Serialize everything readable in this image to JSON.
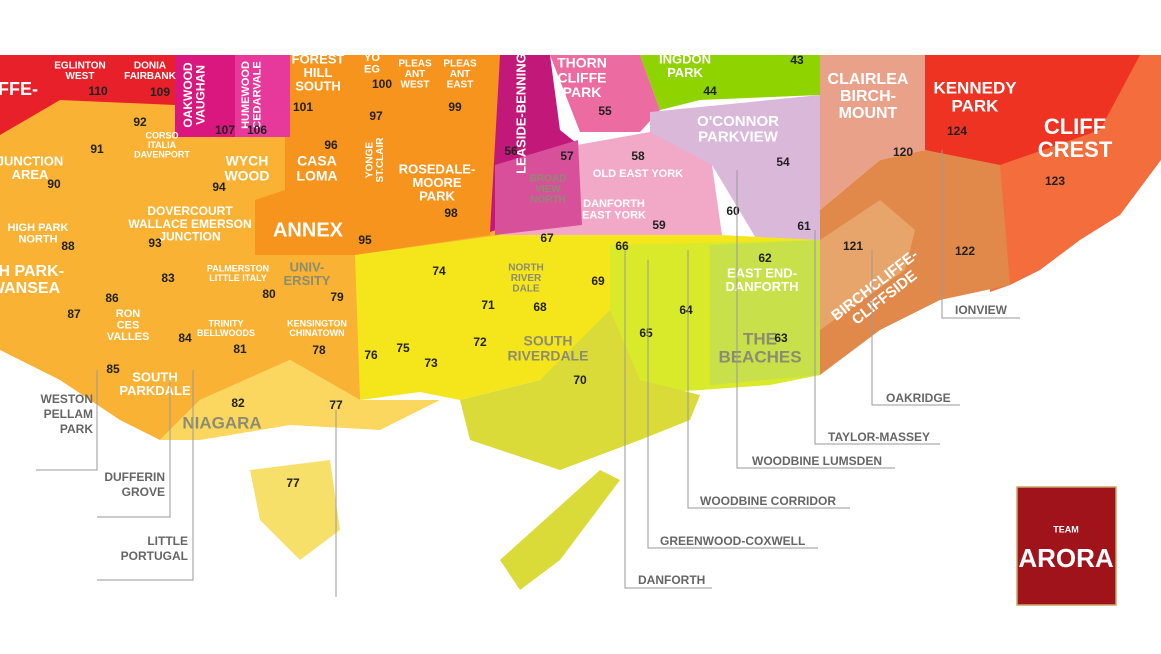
{
  "labels": [
    {
      "lines": [
        "FFE-"
      ]
    },
    {
      "lines": [
        "EGLINTON",
        "WEST"
      ],
      "number": 110
    },
    {
      "lines": [
        "DONIA",
        "FAIRBANK"
      ],
      "number": 109
    },
    {
      "lines": [
        "OAKWOOD",
        "VAUGHAN"
      ],
      "number": 107
    },
    {
      "lines": [
        "HUMEWOOD",
        "CEDARVALE"
      ],
      "number": 106
    },
    {
      "lines": [
        "FOREST",
        "HILL",
        "SOUTH"
      ],
      "number": 101
    },
    {
      "lines": [
        "YO",
        "EG"
      ],
      "number": 100
    },
    {
      "lines": [
        "PLEAS",
        "ANT",
        "WEST"
      ]
    },
    {
      "lines": [
        "PLEAS",
        "ANT",
        "EAST"
      ],
      "number": 99
    },
    {
      "lines": [
        "LEASIDE-BENNINGTON"
      ],
      "number": 56
    },
    {
      "lines": [
        "THORN",
        "CLIFFE",
        "PARK"
      ],
      "number": 55
    },
    {
      "lines": [
        "INGDON",
        "PARK"
      ],
      "number": 44
    },
    {
      "number": 43
    },
    {
      "lines": [
        "CLAIRLEA",
        "BIRCH-",
        "MOUNT"
      ],
      "number": 120
    },
    {
      "lines": [
        "KENNEDY",
        "PARK"
      ],
      "number": 124
    },
    {
      "lines": [
        "CLIFF",
        "CREST"
      ],
      "number": 123
    },
    {
      "lines": [
        "O'CONNOR",
        "PARKVIEW"
      ],
      "number": 54
    },
    {
      "lines": [
        "CORSO",
        "ITALIA",
        "DAVENPORT"
      ],
      "number": 92
    },
    {
      "number": 91
    },
    {
      "lines": [
        "JUNCTION",
        "AREA"
      ],
      "number": 90
    },
    {
      "lines": [
        "WYCH",
        "WOOD"
      ],
      "number": 94
    },
    {
      "lines": [
        "CASA",
        "LOMA"
      ],
      "number": 96
    },
    {
      "lines": [
        "YONGE",
        "ST.CLAIR"
      ],
      "number": 97
    },
    {
      "lines": [
        "ROSEDALE-",
        "MOORE",
        "PARK"
      ],
      "number": 98
    },
    {
      "lines": [
        "BROAD",
        "VIEW",
        "NORTH"
      ],
      "number": 57
    },
    {
      "lines": [
        "OLD EAST YORK"
      ],
      "number": 58
    },
    {
      "lines": [
        "DANFORTH",
        "EAST YORK"
      ],
      "number": 59
    },
    {
      "number": 60
    },
    {
      "number": 61
    },
    {
      "lines": [
        "HIGH PARK",
        "NORTH"
      ],
      "number": 88
    },
    {
      "lines": [
        "DOVERCOURT",
        "WALLACE EMERSON",
        "JUNCTION"
      ],
      "number": 93
    },
    {
      "lines": [
        "ANNEX"
      ],
      "number": 95
    },
    {
      "number": 67
    },
    {
      "number": 66
    },
    {
      "lines": [
        "EAST END-",
        "DANFORTH"
      ],
      "number": 62
    },
    {
      "number": 121
    },
    {
      "lines": [
        "BIRCHCLIFFE-",
        "CLIFFSIDE"
      ],
      "number": 122
    },
    {
      "lines": [
        "GH PARK-",
        "WANSEA"
      ],
      "number": 87
    },
    {
      "number": 83
    },
    {
      "lines": [
        "RON",
        "CES",
        "VALLES"
      ],
      "number": 86
    },
    {
      "lines": [
        "PALMERSTON",
        "LITTLE ITALY"
      ],
      "number": 80
    },
    {
      "lines": [
        "UNIV-",
        "ERSITY"
      ],
      "number": 79
    },
    {
      "number": 74
    },
    {
      "lines": [
        "NORTH",
        "RIVER",
        "DALE"
      ],
      "number": 68
    },
    {
      "number": 71
    },
    {
      "number": 69
    },
    {
      "number": 64
    },
    {
      "lines": [
        "TRINITY",
        "BELLWOODS"
      ],
      "number": 81
    },
    {
      "lines": [
        "KENSINGTON",
        "CHINATOWN"
      ],
      "number": 78
    },
    {
      "number": 84
    },
    {
      "number": 76
    },
    {
      "number": 75
    },
    {
      "number": 73
    },
    {
      "number": 72
    },
    {
      "lines": [
        "SOUTH",
        "RIVERDALE"
      ],
      "number": 70
    },
    {
      "number": 65
    },
    {
      "lines": [
        "THE",
        "BEACHES"
      ],
      "number": 63
    },
    {
      "number": 85
    },
    {
      "lines": [
        "SOUTH",
        "PARKDALE"
      ],
      "number": 82
    },
    {
      "lines": [
        "NIAGARA"
      ]
    },
    {
      "number": 77
    },
    {
      "number": 77
    }
  ],
  "callouts": [
    {
      "lines": [
        "IONVIEW"
      ]
    },
    {
      "lines": [
        "OAKRIDGE"
      ]
    },
    {
      "lines": [
        "TAYLOR-MASSEY"
      ]
    },
    {
      "lines": [
        "WOODBINE LUMSDEN"
      ]
    },
    {
      "lines": [
        "WOODBINE CORRIDOR"
      ]
    },
    {
      "lines": [
        "GREENWOOD-COXWELL"
      ]
    },
    {
      "lines": [
        "DANFORTH"
      ]
    },
    {
      "lines": [
        "WESTON",
        "PELLAM",
        "PARK"
      ]
    },
    {
      "lines": [
        "DUFFERIN",
        "GROVE"
      ]
    },
    {
      "lines": [
        "LITTLE",
        "PORTUGAL"
      ]
    }
  ],
  "logo": {
    "top": "TEAM",
    "name": "ARORA"
  }
}
